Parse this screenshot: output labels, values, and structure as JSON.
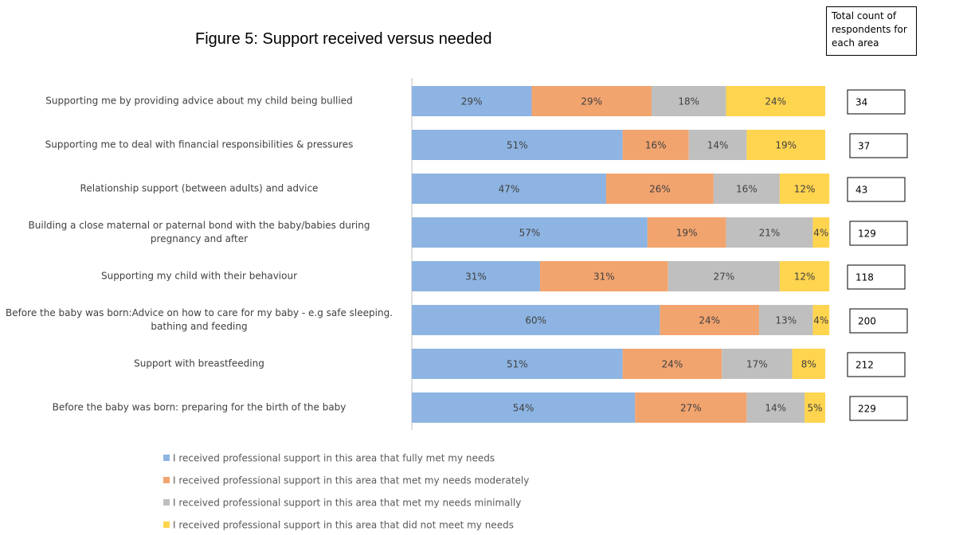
{
  "chart_data": {
    "type": "stacked_bar_horizontal",
    "title": "Figure 5: Support received versus needed",
    "categories": [
      "Supporting me by providing advice about my child being bullied",
      "Supporting me to deal with financial responsibilities & pressures",
      "Relationship support (between adults) and advice",
      "Building a close maternal or paternal bond with the baby/babies during pregnancy and after",
      "Supporting my child with their behaviour",
      "Before the baby was born:Advice on how to care for my baby - e.g safe sleeping. bathing and feeding",
      "Support with breastfeeding",
      "Before the baby was born: preparing for the birth of the baby"
    ],
    "series": [
      {
        "name": "I received professional support in this area that fully met my needs",
        "color": "#8db4e2",
        "values": [
          29,
          51,
          47,
          57,
          31,
          60,
          51,
          54
        ],
        "value_labels": [
          "29%",
          "51%",
          "47%",
          "57%",
          "31%",
          "60%",
          "51%",
          "54%"
        ]
      },
      {
        "name": "I received professional support in this area that met my needs moderately",
        "color": "#f2a46f",
        "values": [
          29,
          16,
          26,
          19,
          31,
          24,
          24,
          27
        ],
        "value_labels": [
          "29%",
          "16%",
          "26%",
          "19%",
          "31%",
          "24%",
          "24%",
          "27%"
        ]
      },
      {
        "name": "I received professional support in this area that met my needs minimally",
        "color": "#bfbfbf",
        "values": [
          18,
          14,
          16,
          21,
          27,
          13,
          17,
          14
        ],
        "value_labels": [
          "18%",
          "14%",
          "16%",
          "21%",
          "27%",
          "13%",
          "17%",
          "14%"
        ]
      },
      {
        "name": "I received professional support in this area that did not meet my needs",
        "color": "#ffd44f",
        "values": [
          24,
          19,
          12,
          4,
          12,
          4,
          8,
          5
        ],
        "value_labels": [
          "24%",
          "19%",
          "12%",
          "4%",
          "12%",
          "4%",
          "8%",
          "5%"
        ]
      }
    ],
    "counts_title": "Total count of respondents for each area",
    "counts": [
      34,
      37,
      43,
      129,
      118,
      200,
      212,
      229
    ]
  }
}
